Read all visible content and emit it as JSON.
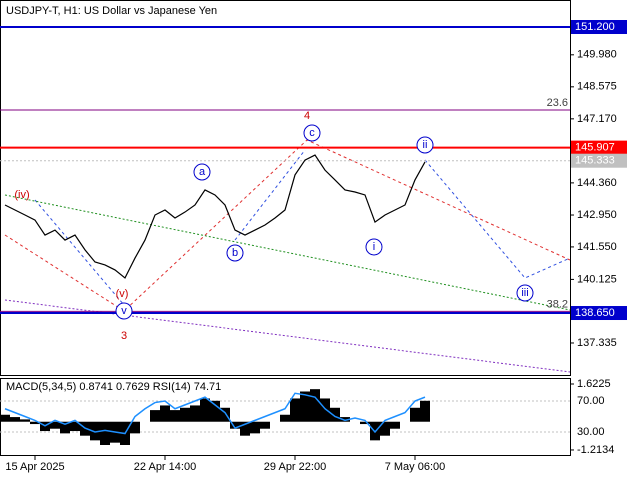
{
  "chart_data": [
    {
      "type": "line",
      "title": "USDJPY-T, H1:  US Dollar vs Japanese Yen",
      "categories": [
        null,
        null,
        null,
        "15 Apr 2025",
        null,
        null,
        null,
        null,
        null,
        null,
        null,
        null,
        null,
        null,
        null,
        null,
        "22 Apr 14:00",
        null,
        null,
        null,
        null,
        null,
        null,
        null,
        null,
        null,
        null,
        null,
        null,
        "29 Apr 22:00",
        null,
        null,
        null,
        null,
        null,
        null,
        null,
        null,
        null,
        null,
        null,
        "7 May 06:00",
        null
      ],
      "values": [
        143.39,
        143.17,
        142.95,
        142.73,
        142.07,
        142.29,
        141.85,
        142.07,
        141.42,
        140.89,
        140.76,
        140.54,
        140.19,
        141.06,
        141.85,
        142.95,
        143.17,
        142.82,
        143.08,
        143.39,
        144.05,
        143.83,
        143.39,
        142.29,
        142.07,
        142.29,
        142.51,
        142.82,
        143.17,
        144.71,
        145.36,
        145.58,
        144.92,
        144.49,
        144.05,
        143.96,
        143.83,
        142.64,
        142.95,
        143.17,
        143.39,
        144.49,
        145.28
      ],
      "color": "#000000",
      "ylim": [
        135.93,
        152.385
      ],
      "yticks": [
        {
          "value": 149.98,
          "label": "149.980"
        },
        {
          "value": 148.575,
          "label": "148.575"
        },
        {
          "value": 147.17,
          "label": "147.170"
        },
        {
          "value": 144.36,
          "label": "144.360"
        },
        {
          "value": 142.95,
          "label": "142.950"
        },
        {
          "value": 141.55,
          "label": "141.550"
        },
        {
          "value": 140.125,
          "label": "140.125"
        },
        {
          "value": 137.335,
          "label": "137.335"
        }
      ],
      "levels": [
        {
          "value": 151.2,
          "label": "151.200",
          "color": "#0000cc"
        },
        {
          "value": 145.907,
          "label": "145.907",
          "color": "#ff0000"
        },
        {
          "value": 145.333,
          "label": "145.333",
          "color": "#c0c0c0"
        },
        {
          "value": 138.65,
          "label": "138.650",
          "color": "#0000cc"
        }
      ],
      "fib": [
        {
          "value": 147.56,
          "label": "23.6"
        },
        {
          "value": 138.72,
          "label": "38.2"
        }
      ],
      "annotations": [
        {
          "text": "(iv)",
          "color": "#cc0000"
        },
        {
          "text": "(v)",
          "color": "#cc0000"
        },
        {
          "text": "v",
          "color": "#0000cc"
        },
        {
          "text": "3",
          "color": "#cc0000"
        },
        {
          "text": "a",
          "color": "#0000cc"
        },
        {
          "text": "b",
          "color": "#0000cc"
        },
        {
          "text": "c",
          "color": "#0000cc"
        },
        {
          "text": "4",
          "color": "#cc0000"
        },
        {
          "text": "ii",
          "color": "#0000cc"
        },
        {
          "text": "i",
          "color": "#0000cc"
        },
        {
          "text": "iii",
          "color": "#0000cc"
        }
      ]
    },
    {
      "type": "macd",
      "title": "MACD(5,34,5) 0.8741 0.7629 RSI(14) 74.71",
      "series": [
        {
          "color": "#000000",
          "values": [
            0.3,
            0.2,
            0.1,
            -0.1,
            -0.4,
            -0.3,
            -0.5,
            -0.4,
            -0.6,
            -0.8,
            -1.0,
            -0.9,
            -1.0,
            -0.5,
            0.0,
            0.5,
            0.7,
            0.5,
            0.6,
            0.7,
            1.0,
            0.9,
            0.6,
            -0.3,
            -0.6,
            -0.5,
            -0.3,
            0.0,
            0.3,
            1.0,
            1.3,
            1.4,
            1.0,
            0.6,
            0.2,
            0.0,
            -0.1,
            -0.8,
            -0.6,
            -0.3,
            0.0,
            0.6,
            0.9
          ]
        },
        {
          "color": "#1e90ff",
          "axis": "y2",
          "values": [
            60,
            55,
            50,
            45,
            38,
            45,
            40,
            45,
            35,
            30,
            32,
            30,
            28,
            50,
            60,
            68,
            70,
            60,
            65,
            70,
            75,
            65,
            55,
            35,
            40,
            45,
            50,
            55,
            60,
            80,
            78,
            75,
            60,
            50,
            45,
            48,
            45,
            30,
            45,
            50,
            55,
            70,
            75
          ]
        }
      ],
      "ylim": [
        -1.43,
        1.88
      ],
      "yticks": [
        1.6225,
        -1.2134
      ],
      "y2lim": [
        0.3,
        99.7
      ],
      "y2ticks": [
        {
          "value": 70,
          "label": "70.00"
        },
        {
          "value": 30,
          "label": "30.00"
        }
      ]
    }
  ]
}
